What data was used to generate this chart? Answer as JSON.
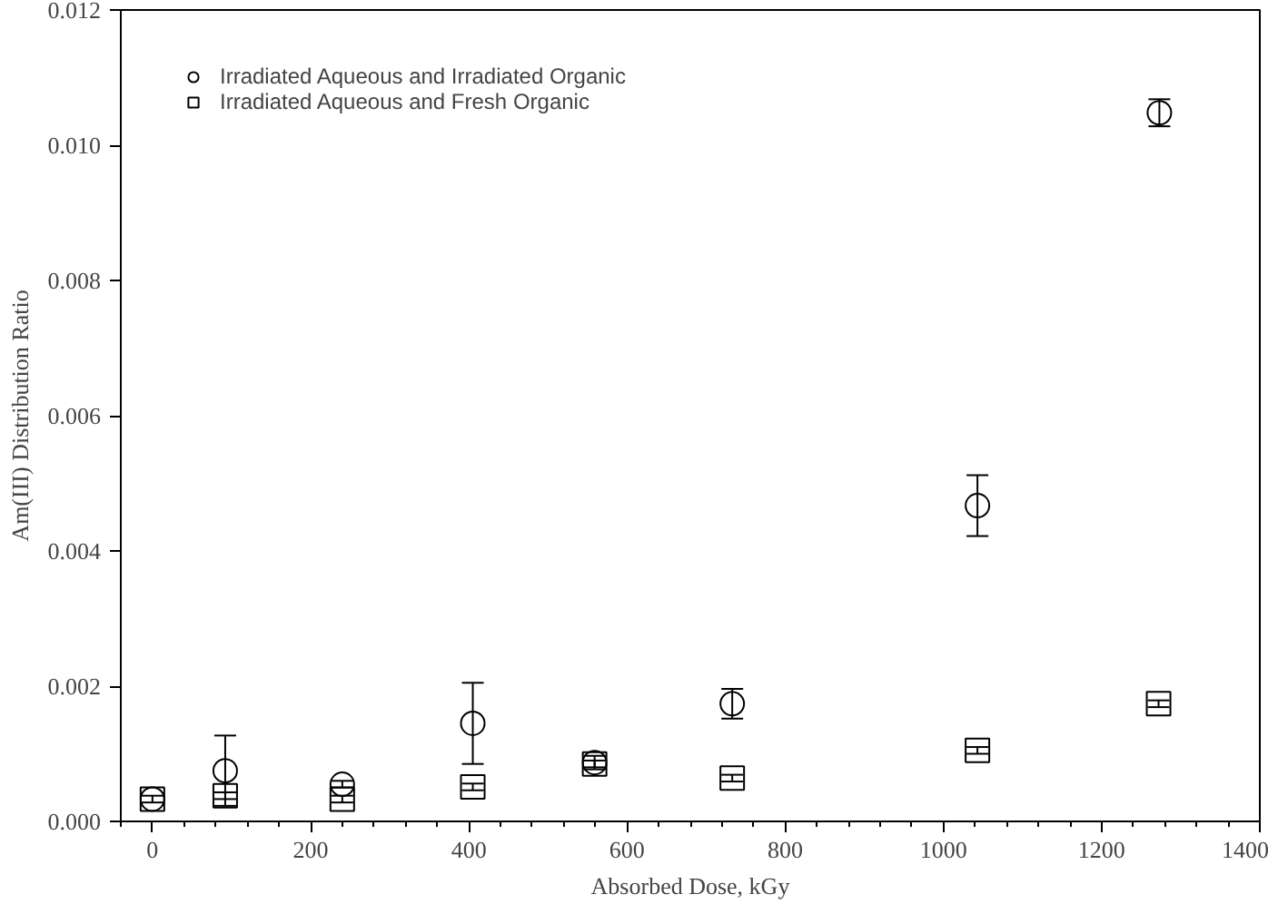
{
  "chart_data": {
    "type": "scatter",
    "xlabel": "Absorbed Dose, kGy",
    "ylabel": "Am(III) Distribution Ratio",
    "xlim": [
      -40,
      1400
    ],
    "xticks": [
      0,
      200,
      400,
      600,
      800,
      1000,
      1200,
      1400
    ],
    "ylim": [
      0,
      0.012
    ],
    "yticks": [
      {
        "value": 0,
        "label": "0.000"
      },
      {
        "value": 0.002,
        "label": "0.002"
      },
      {
        "value": 0.004,
        "label": "0.004"
      },
      {
        "value": 0.006,
        "label": "0.006"
      },
      {
        "value": 0.008,
        "label": "0.008"
      },
      {
        "value": 0.01,
        "label": "0.010"
      },
      {
        "value": 0.012,
        "label": "0.012"
      }
    ],
    "grid": false,
    "legend": "top left",
    "series": [
      {
        "name": "Irradiated Aqueous and Irradiated Organic",
        "color": "#000000",
        "marker": "circle",
        "x": [
          0,
          92,
          240,
          405,
          559,
          733,
          1043,
          1273
        ],
        "values": [
          0.00033,
          0.00075,
          0.00055,
          0.00145,
          0.00087,
          0.00174,
          0.00467,
          0.01048
        ],
        "errors": [
          null,
          0.00052,
          5e-05,
          0.0006,
          0.0001,
          0.00022,
          0.00045,
          0.0002
        ]
      },
      {
        "name": "Irradiated Aqueous and Fresh Organic",
        "color": "#000000",
        "marker": "square",
        "x": [
          0,
          92,
          240,
          405,
          559,
          733,
          1043,
          1272
        ],
        "values": [
          0.00033,
          0.00038,
          0.00033,
          0.00051,
          0.00085,
          0.00064,
          0.00105,
          0.00174
        ],
        "errors": [
          5e-05,
          5e-05,
          5e-05,
          5e-05,
          5e-05,
          5e-05,
          5e-05,
          5e-05
        ]
      }
    ]
  }
}
